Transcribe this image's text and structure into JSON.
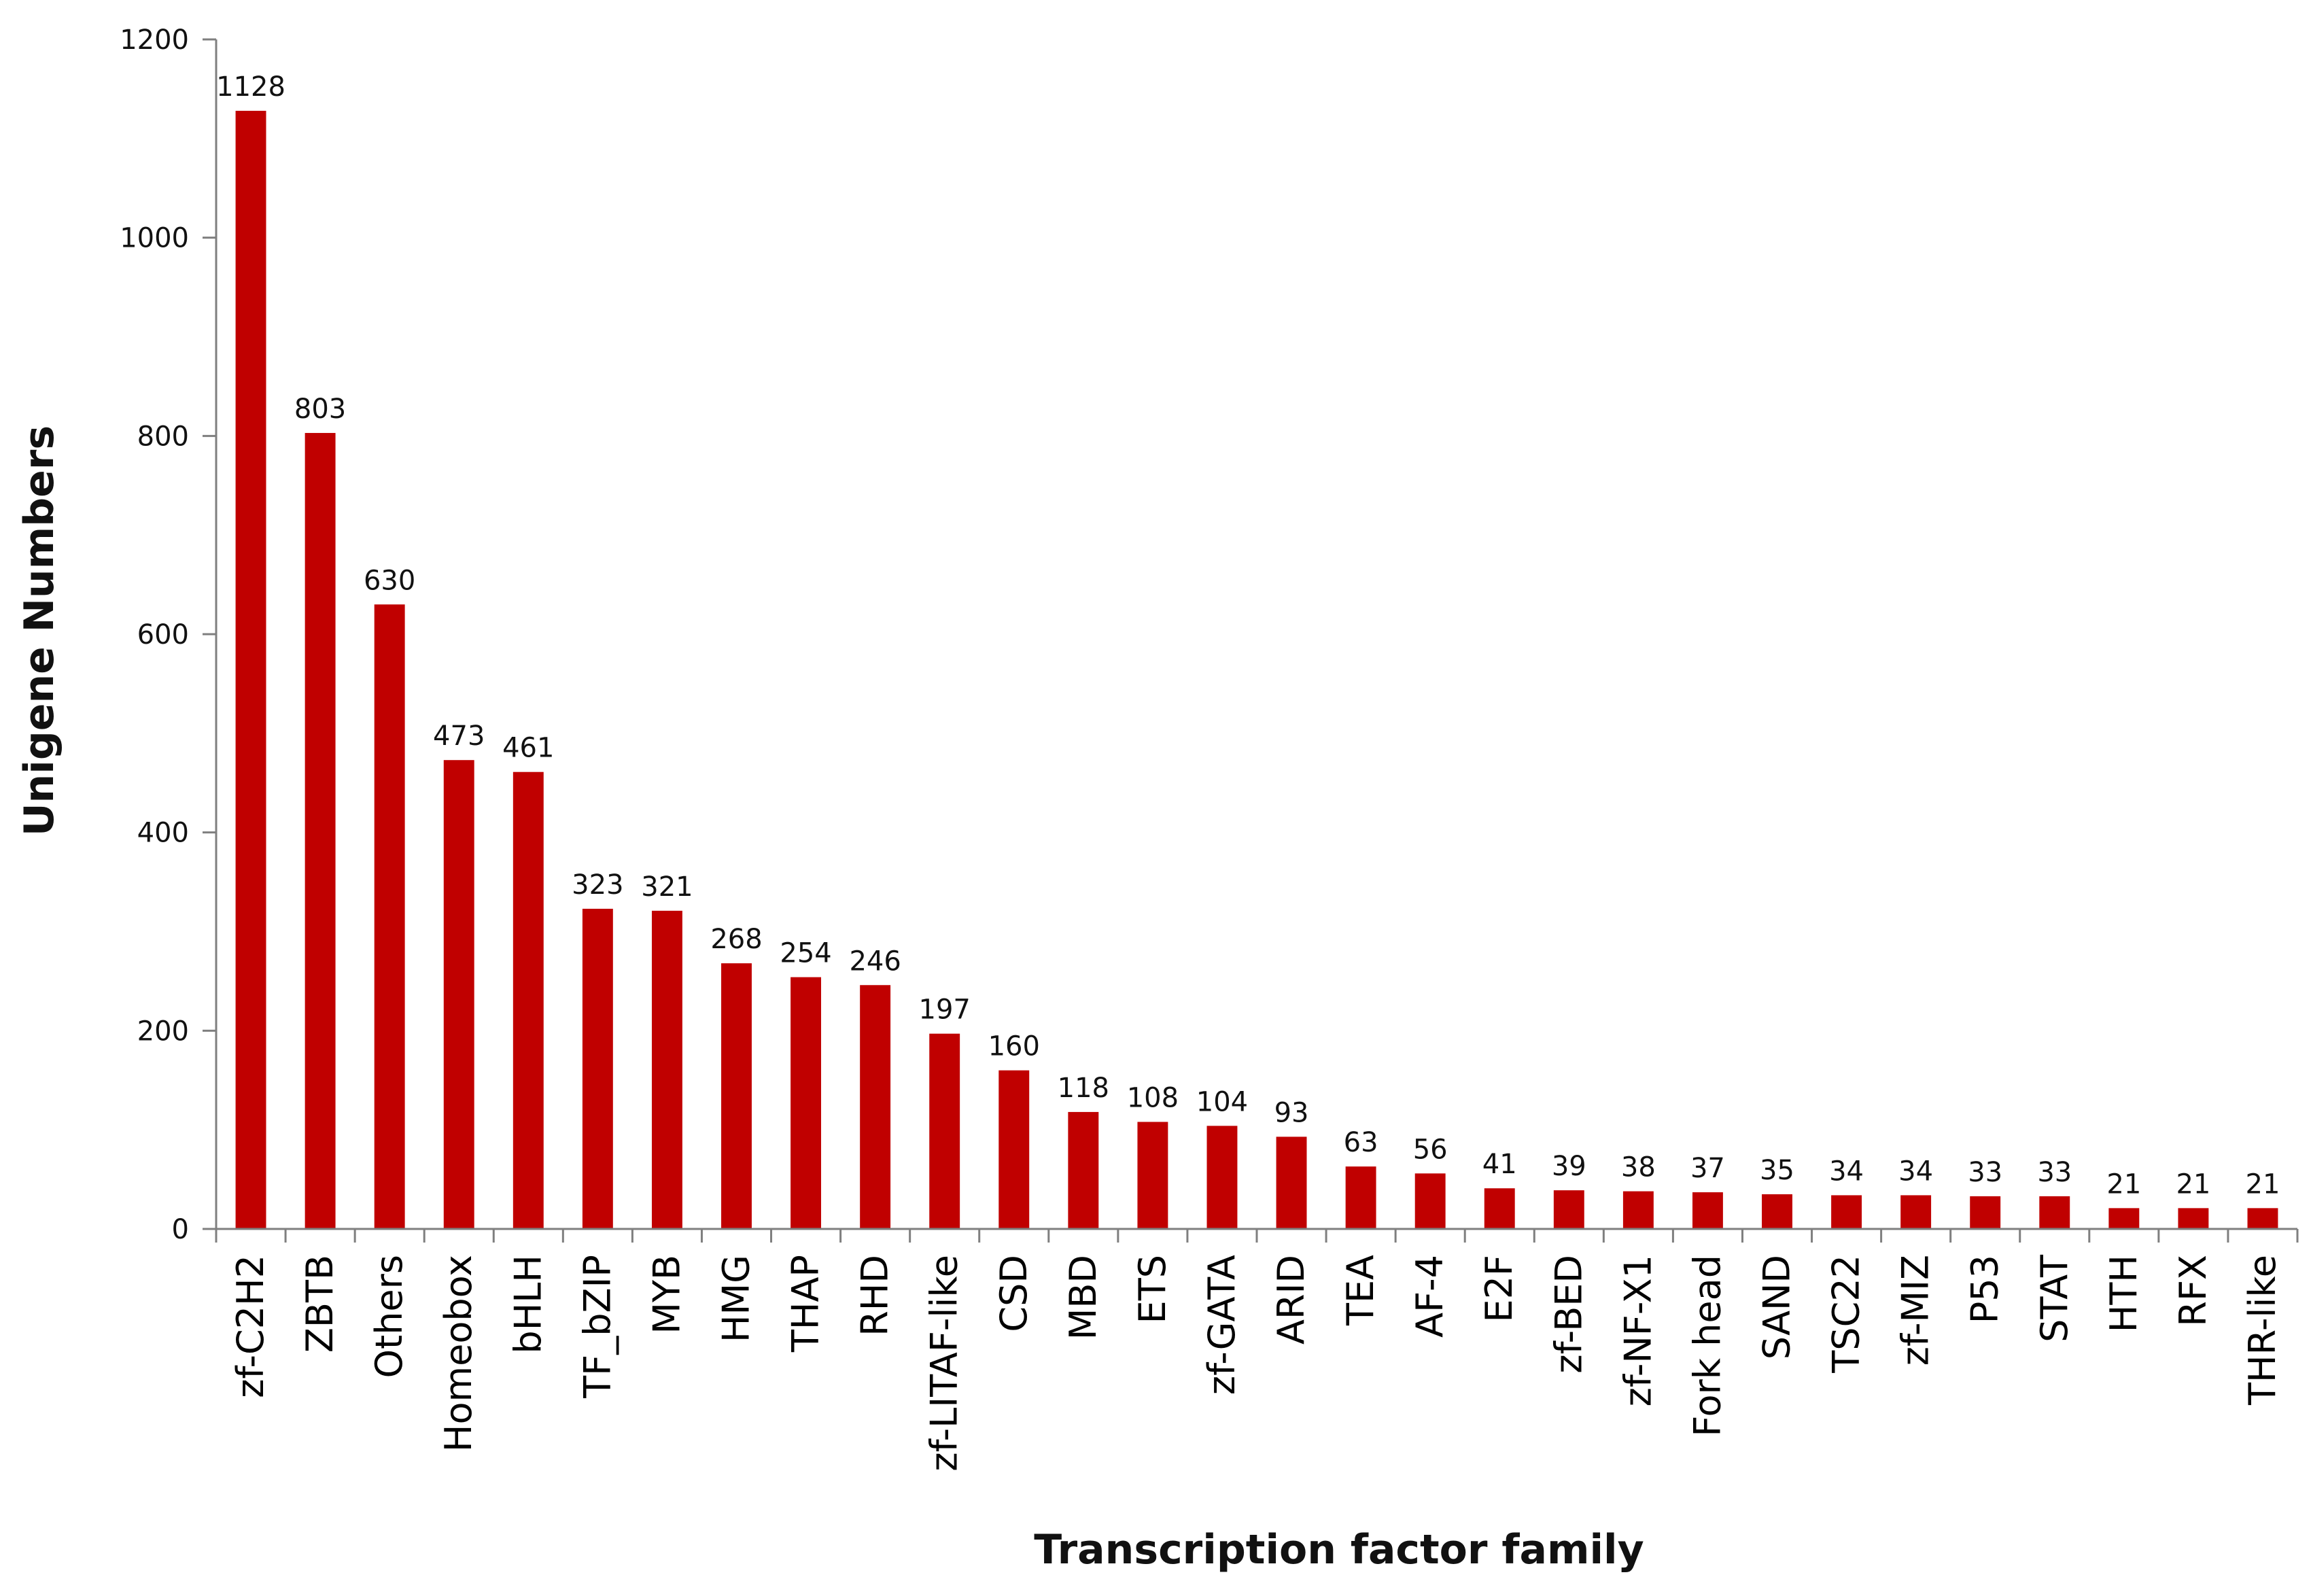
{
  "chart_data": {
    "type": "bar",
    "title": "",
    "xlabel": "Transcription factor family",
    "ylabel": "Unigene Numbers",
    "ylim": [
      0,
      1200
    ],
    "yticks": [
      0,
      200,
      400,
      600,
      800,
      1000,
      1200
    ],
    "grid": false,
    "legend": "none",
    "bar_color": "#C00000",
    "categories": [
      "zf-C2H2",
      "ZBTB",
      "Others",
      "Homeobox",
      "bHLH",
      "TF_bZIP",
      "MYB",
      "HMG",
      "THAP",
      "RHD",
      "zf-LITAF-like",
      "CSD",
      "MBD",
      "ETS",
      "zf-GATA",
      "ARID",
      "TEA",
      "AF-4",
      "E2F",
      "zf-BED",
      "zf-NF-X1",
      "Fork head",
      "SAND",
      "TSC22",
      "zf-MIZ",
      "P53",
      "STAT",
      "HTH",
      "RFX",
      "THR-like"
    ],
    "values": [
      1128,
      803,
      630,
      473,
      461,
      323,
      321,
      268,
      254,
      246,
      197,
      160,
      118,
      108,
      104,
      93,
      63,
      56,
      41,
      39,
      38,
      37,
      35,
      34,
      34,
      33,
      33,
      21,
      21,
      21
    ],
    "data_labels": [
      "1128",
      "803",
      "630",
      "473",
      "461",
      "323",
      "321",
      "268",
      "254",
      "246",
      "197",
      "160",
      "118",
      "108",
      "104",
      "93",
      "63",
      "56",
      "41",
      "39",
      "38",
      "37",
      "35",
      "34",
      "34",
      "33",
      "33",
      "21",
      "21",
      "21"
    ]
  }
}
